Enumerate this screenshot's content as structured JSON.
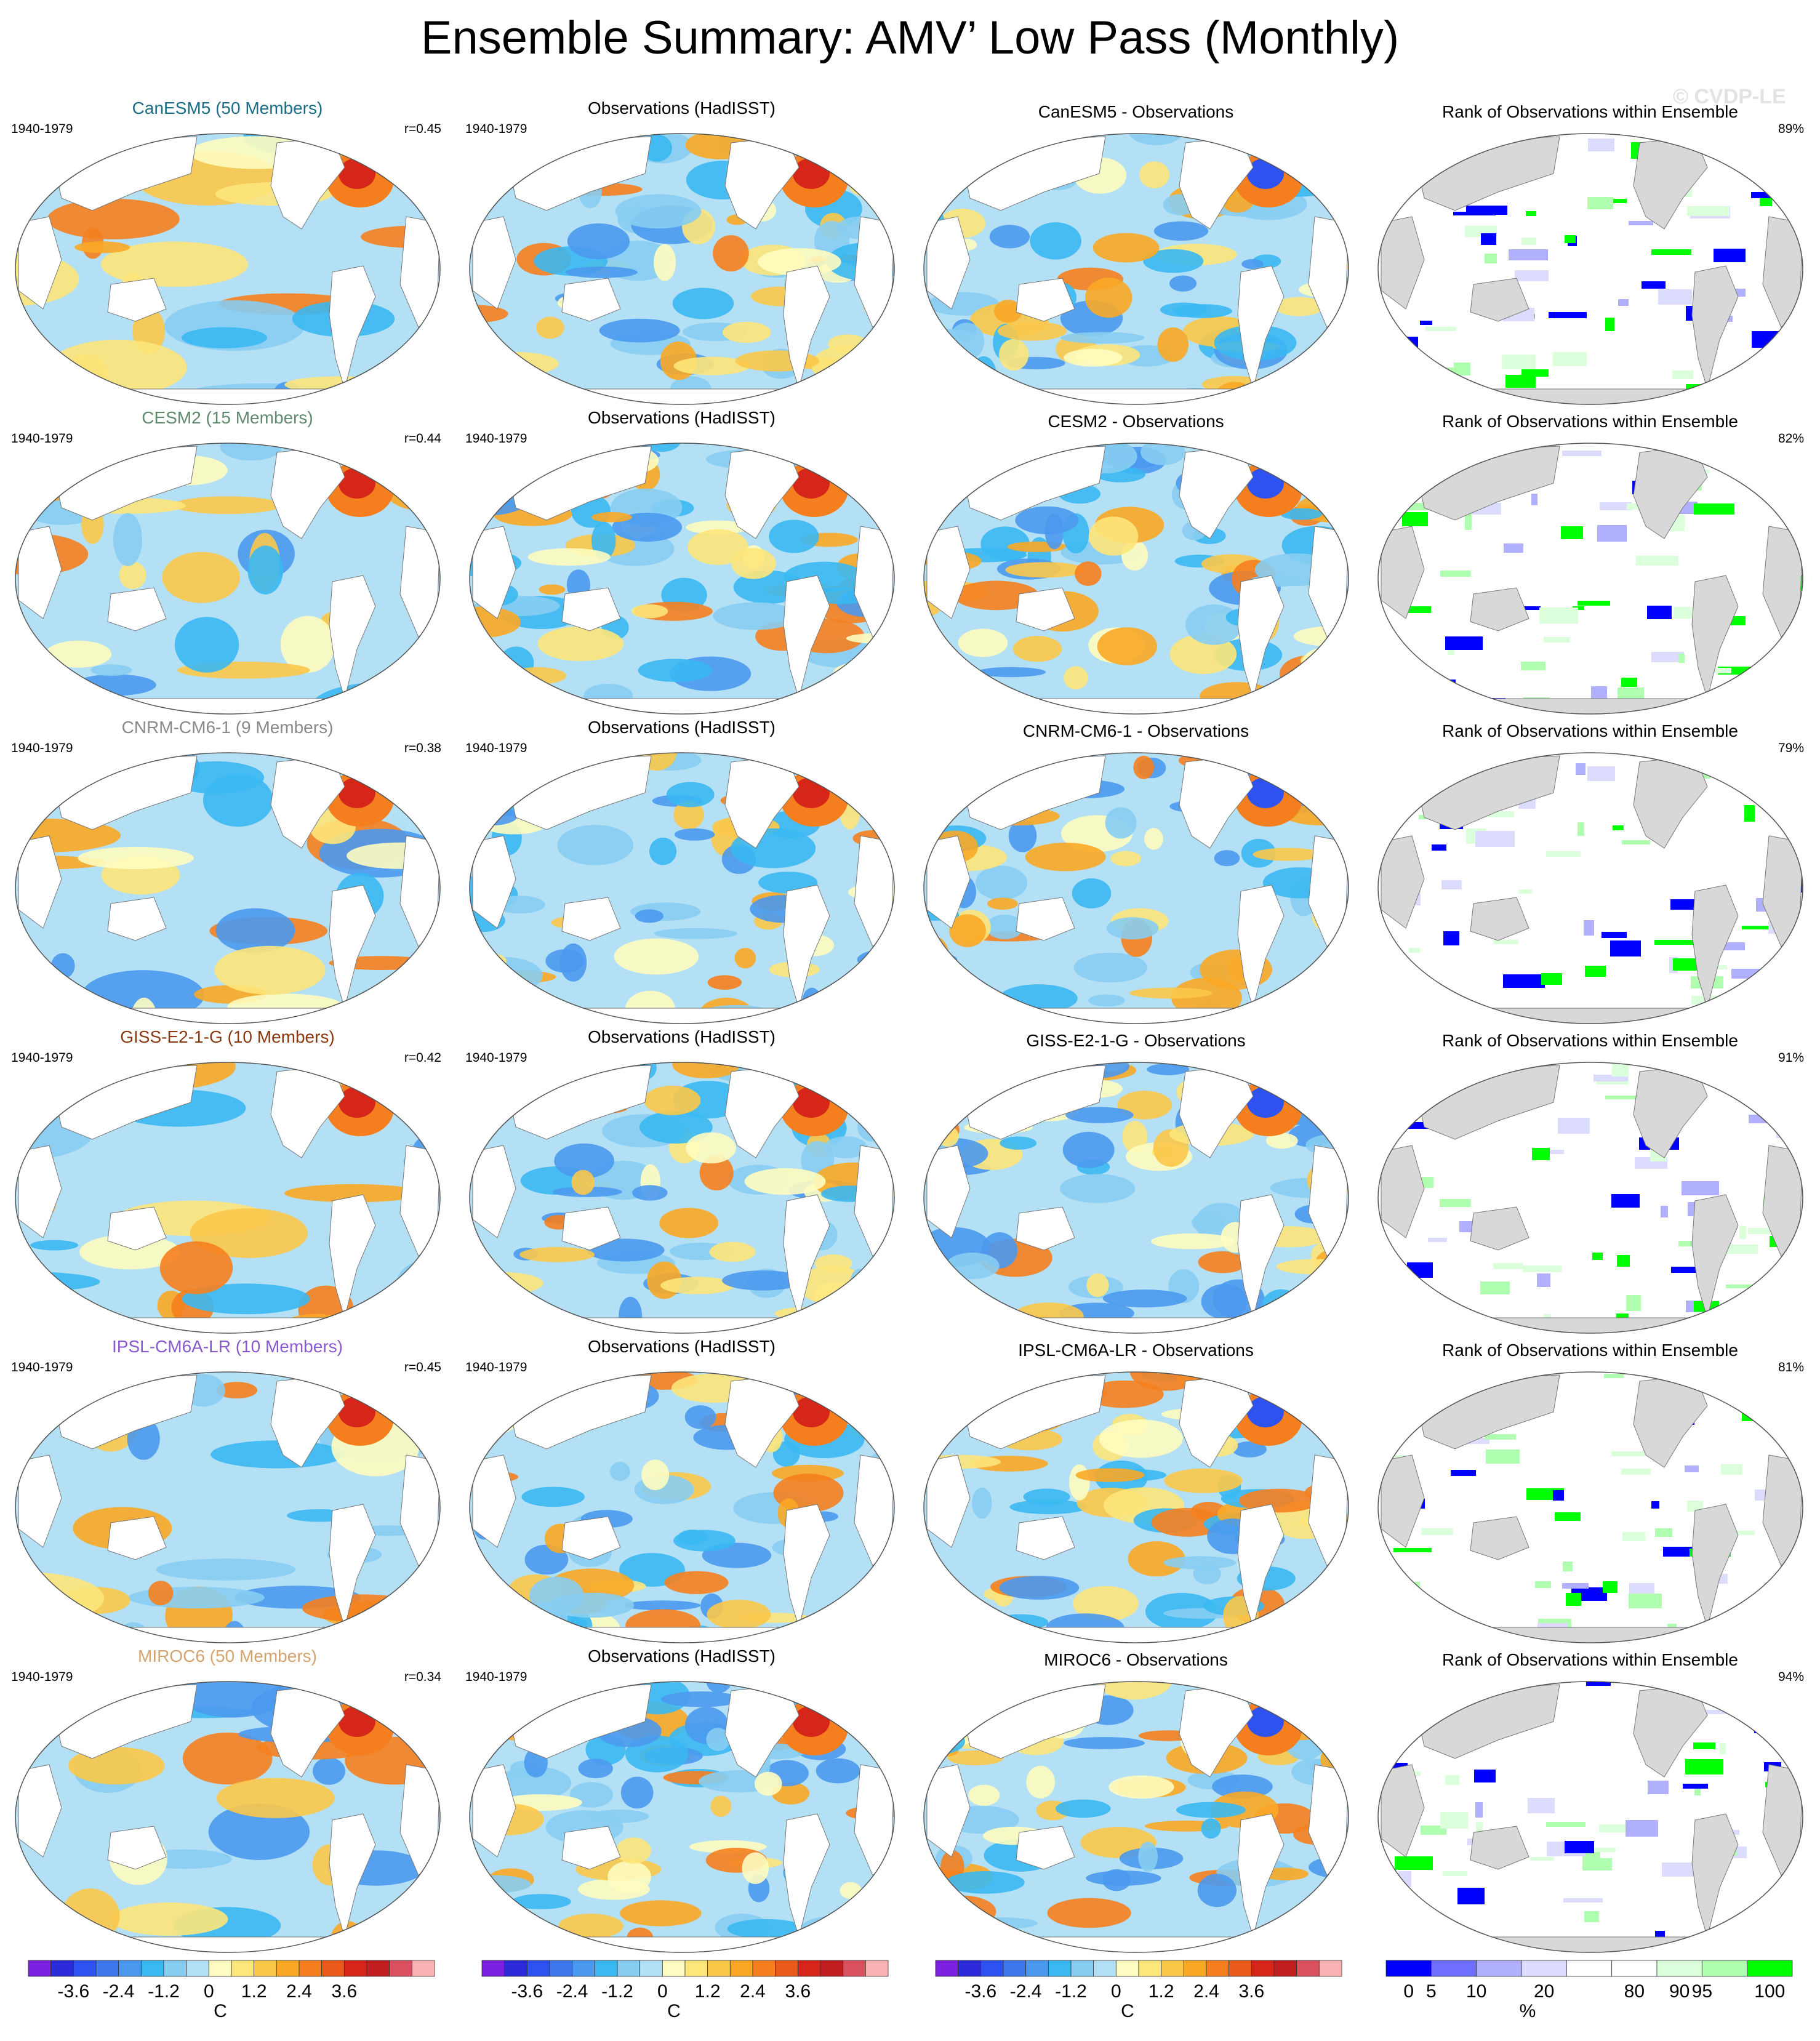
{
  "title": "Ensemble Summary: AMV’ Low Pass (Monthly)",
  "watermark": "© CVDP-LE",
  "rows": [
    {
      "model": "CanESM5 (50 Members)",
      "model_color": "#1a6d86",
      "period": "1940-1979",
      "r": "r=0.45",
      "obs_title": "Observations (HadISST)",
      "obs_period": "1940-1979",
      "diff_title": "CanESM5 - Observations",
      "rank_title": "Rank of Observations within Ensemble",
      "rank_pct": "89%"
    },
    {
      "model": "CESM2 (15 Members)",
      "model_color": "#5f8a6e",
      "period": "1940-1979",
      "r": "r=0.44",
      "obs_title": "Observations (HadISST)",
      "obs_period": "1940-1979",
      "diff_title": "CESM2 - Observations",
      "rank_title": "Rank of Observations within Ensemble",
      "rank_pct": "82%"
    },
    {
      "model": "CNRM-CM6-1 (9 Members)",
      "model_color": "#8a8a8a",
      "period": "1940-1979",
      "r": "r=0.38",
      "obs_title": "Observations (HadISST)",
      "obs_period": "1940-1979",
      "diff_title": "CNRM-CM6-1 - Observations",
      "rank_title": "Rank of Observations within Ensemble",
      "rank_pct": "79%"
    },
    {
      "model": "GISS-E2-1-G (10 Members)",
      "model_color": "#8b3a12",
      "period": "1940-1979",
      "r": "r=0.42",
      "obs_title": "Observations (HadISST)",
      "obs_period": "1940-1979",
      "diff_title": "GISS-E2-1-G - Observations",
      "rank_title": "Rank of Observations within Ensemble",
      "rank_pct": "91%"
    },
    {
      "model": "IPSL-CM6A-LR (10 Members)",
      "model_color": "#8a5ad0",
      "period": "1940-1979",
      "r": "r=0.45",
      "obs_title": "Observations (HadISST)",
      "obs_period": "1940-1979",
      "diff_title": "IPSL-CM6A-LR - Observations",
      "rank_title": "Rank of Observations within Ensemble",
      "rank_pct": "81%"
    },
    {
      "model": "MIROC6 (50 Members)",
      "model_color": "#d4a36e",
      "period": "1940-1979",
      "r": "r=0.34",
      "obs_title": "Observations (HadISST)",
      "obs_period": "1940-1979",
      "diff_title": "MIROC6 - Observations",
      "rank_title": "Rank of Observations within Ensemble",
      "rank_pct": "94%"
    }
  ],
  "sst_colorbar": {
    "colors": [
      "#7d21e0",
      "#2b2bd9",
      "#2e52f0",
      "#3f78ea",
      "#4a99ee",
      "#3ab8f2",
      "#87cdf2",
      "#b3e0f5",
      "#fefcc0",
      "#fde67a",
      "#fbc84a",
      "#f9a826",
      "#f57f1e",
      "#ea5a1a",
      "#d52619",
      "#c21f21",
      "#d9505e",
      "#f9b3b3"
    ],
    "tick_labels": [
      "-3.6",
      "-2.4",
      "-1.2",
      "0",
      "1.2",
      "2.4",
      "3.6"
    ],
    "tick_positions": [
      2,
      4,
      6,
      8,
      10,
      12,
      14
    ],
    "unit": "C"
  },
  "rank_colorbar": {
    "colors": [
      "#0000ff",
      "#6f6fff",
      "#b0b0ff",
      "#dcdcff",
      "#ffffff",
      "#ffffff",
      "#dcffdc",
      "#b0ffb0",
      "#00ff00"
    ],
    "tick_labels": [
      "0",
      "5",
      "10",
      "20",
      "80",
      "90",
      "95",
      "100"
    ],
    "tick_positions": [
      0.5,
      1,
      2,
      3.5,
      5.5,
      6.5,
      7,
      8.5
    ],
    "unit": "%"
  }
}
